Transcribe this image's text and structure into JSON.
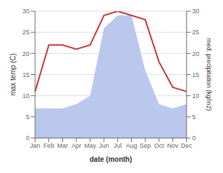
{
  "chart_data": {
    "type": "line",
    "categories": [
      "Jan",
      "Feb",
      "Mar",
      "Apr",
      "May",
      "Jun",
      "Jul",
      "Aug",
      "Sep",
      "Oct",
      "Nov",
      "Dec"
    ],
    "series": [
      {
        "type": "line",
        "color": "#cc3333",
        "values": [
          11,
          22,
          22,
          21,
          22,
          29,
          30,
          29,
          28,
          18,
          12,
          11
        ]
      },
      {
        "type": "area",
        "axis": "y2",
        "color": "#bbc8ed",
        "values": [
          7,
          7,
          7,
          8,
          10,
          26,
          29,
          29,
          16,
          8,
          7,
          8
        ]
      }
    ],
    "xlabel": "date (month)",
    "ylabel": "max temp (C)",
    "y2label": "med. precipitation (kg/m2)",
    "ylim": [
      0,
      30
    ],
    "yticks": [
      0,
      5,
      10,
      15,
      20,
      25,
      30
    ],
    "y2lim": [
      0,
      30
    ],
    "y2ticks": [
      0,
      5,
      10,
      15,
      20,
      25,
      30
    ],
    "grid": true
  }
}
